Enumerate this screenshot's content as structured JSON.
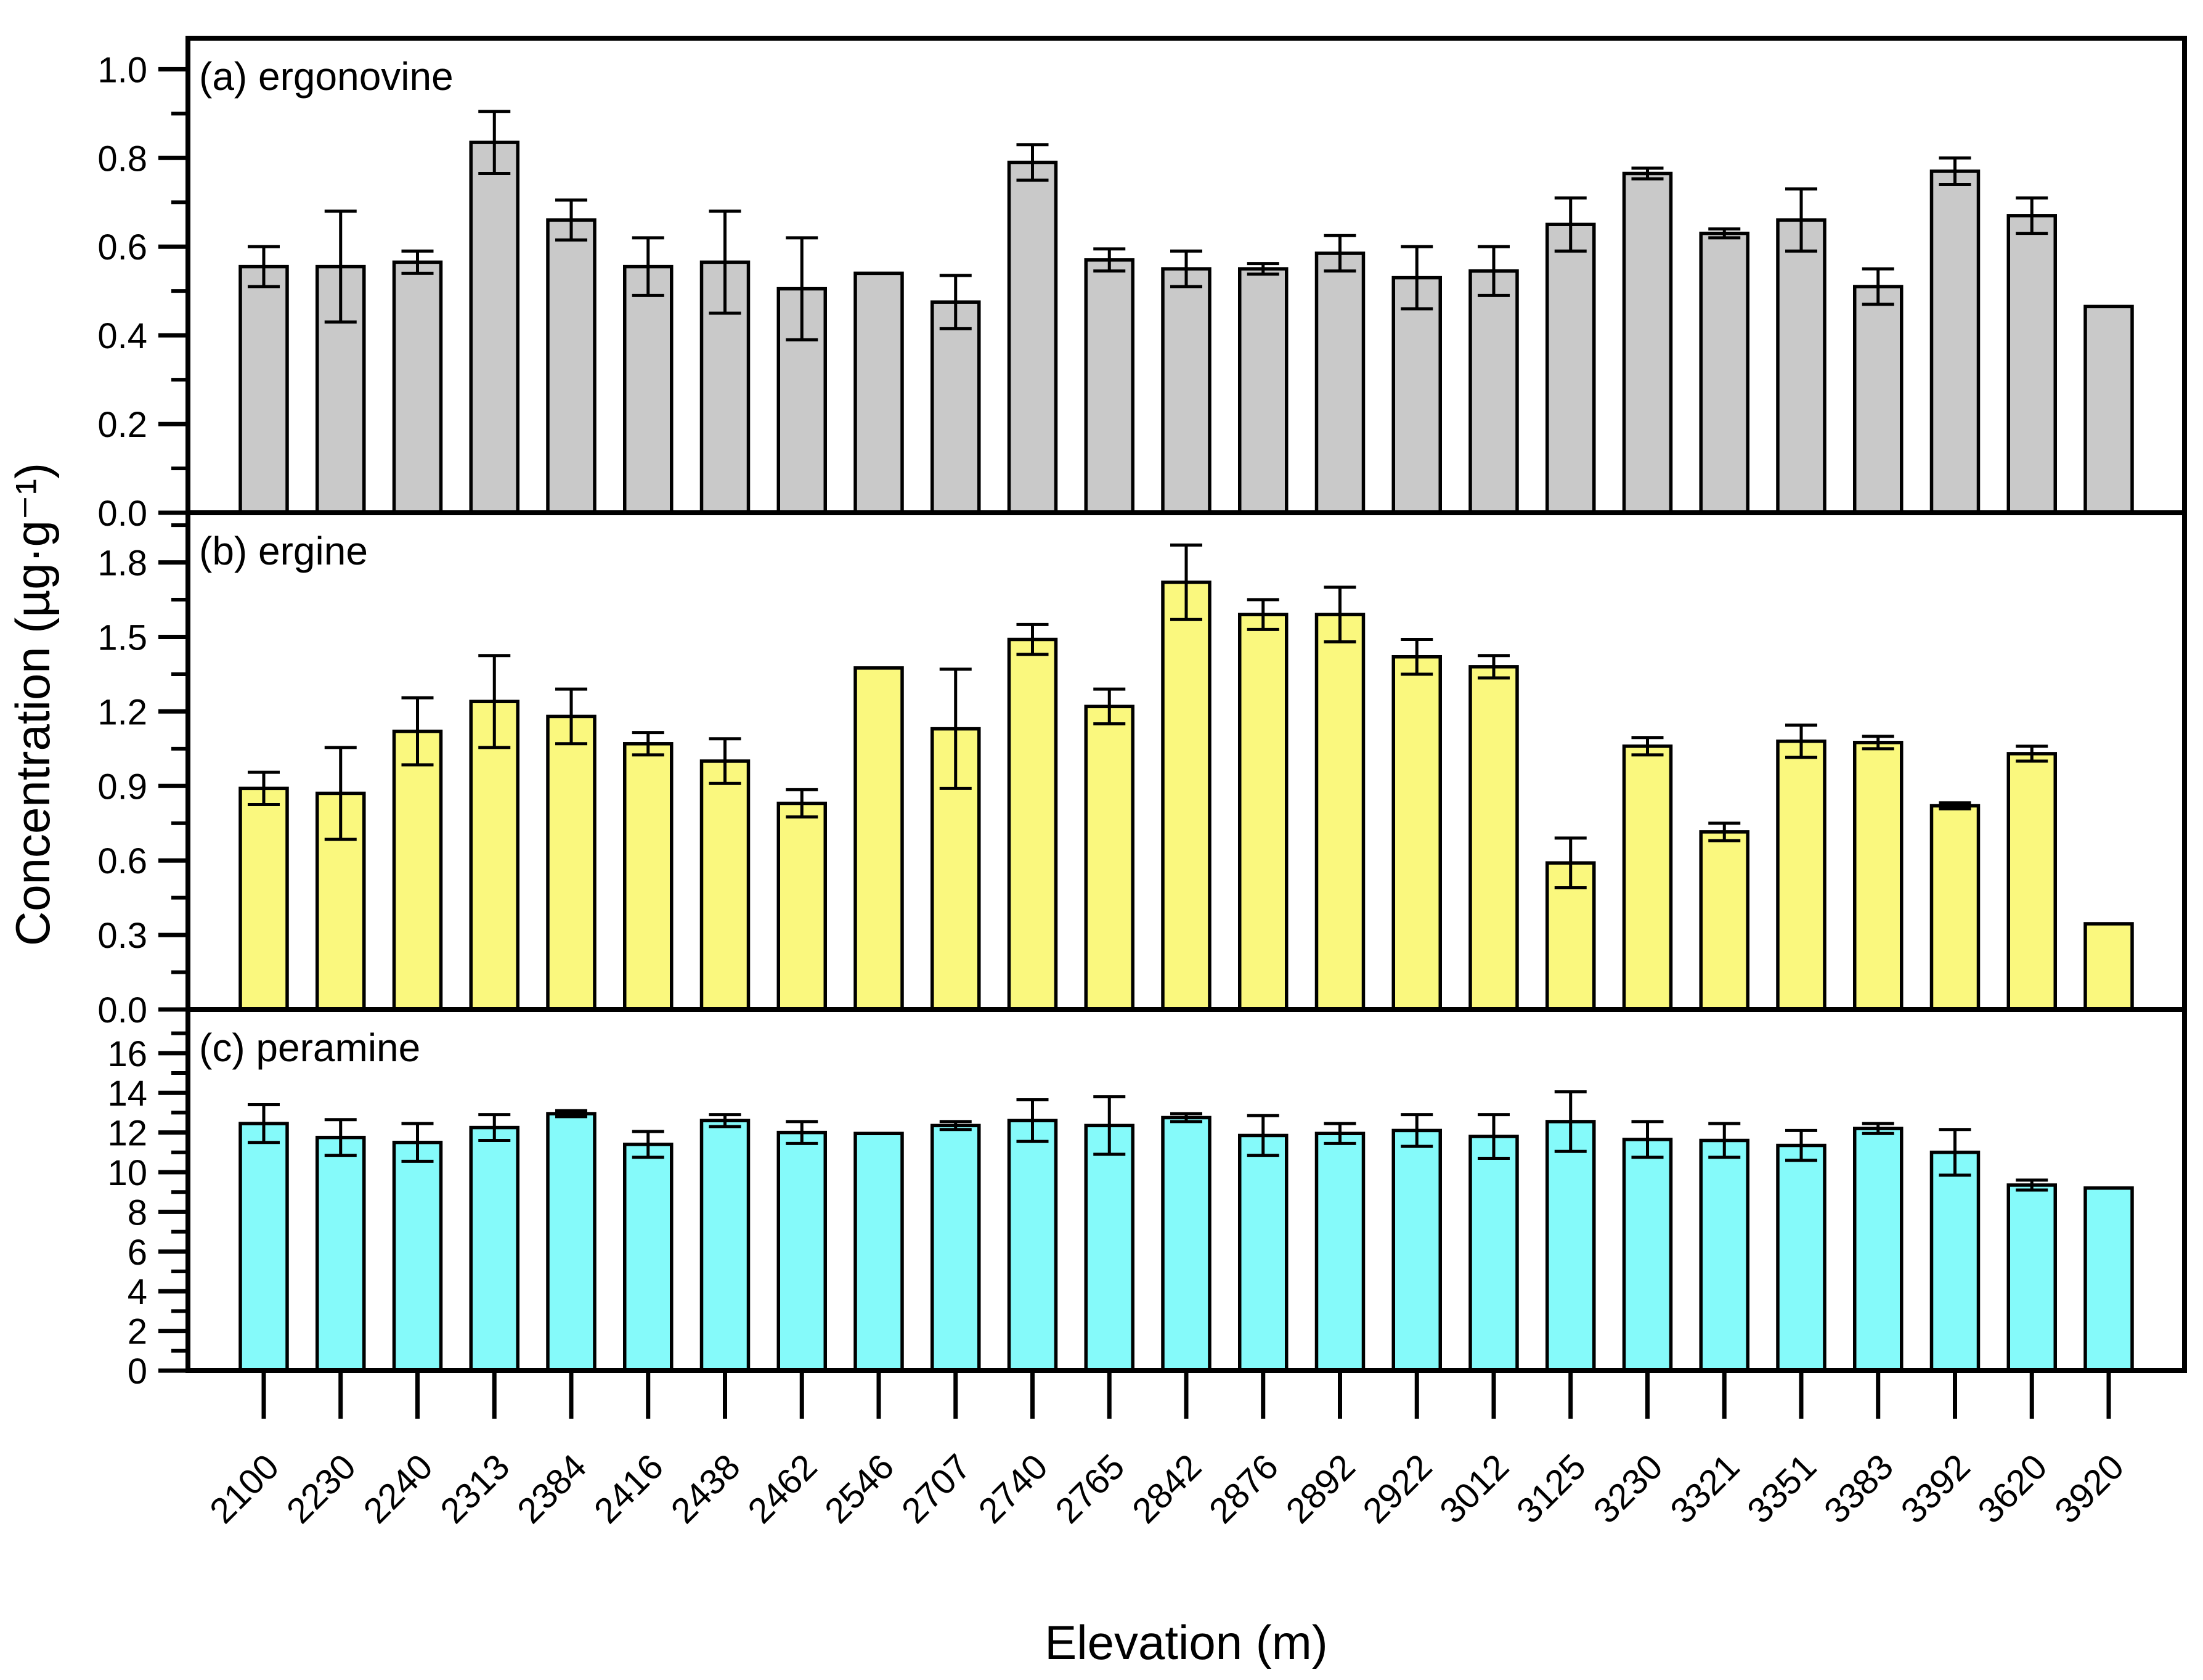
{
  "chart_data": {
    "type": "bar",
    "title": "",
    "xlabel": "Elevation (m)",
    "ylabel": "Concentration (µg·g⁻¹)",
    "grid": false,
    "legend_position": "none",
    "categories": [
      "2100",
      "2230",
      "2240",
      "2313",
      "2384",
      "2416",
      "2438",
      "2462",
      "2546",
      "2707",
      "2740",
      "2765",
      "2842",
      "2876",
      "2892",
      "2922",
      "3012",
      "3125",
      "3230",
      "3321",
      "3351",
      "3383",
      "3392",
      "3620",
      "3920"
    ],
    "error_bar_style": "symmetric, black caps",
    "panels": [
      {
        "id": "a",
        "label": "(a) ergonovine",
        "bar_color": "#c9c9c9",
        "ylim": [
          0,
          1.07
        ],
        "yticks": [
          "0.0",
          "0.2",
          "0.4",
          "0.6",
          "0.8",
          "1.0"
        ],
        "values": [
          0.555,
          0.555,
          0.565,
          0.835,
          0.66,
          0.555,
          0.565,
          0.505,
          0.54,
          0.475,
          0.79,
          0.57,
          0.55,
          0.55,
          0.585,
          0.53,
          0.545,
          0.65,
          0.765,
          0.63,
          0.66,
          0.51,
          0.77,
          0.67,
          0.465
        ],
        "errors": [
          0.045,
          0.125,
          0.025,
          0.07,
          0.045,
          0.065,
          0.115,
          0.115,
          null,
          0.06,
          0.04,
          0.025,
          0.04,
          0.012,
          0.04,
          0.07,
          0.055,
          0.06,
          0.012,
          0.01,
          0.07,
          0.04,
          0.03,
          0.04,
          null
        ]
      },
      {
        "id": "b",
        "label": "(b) ergine",
        "bar_color": "#faf87e",
        "ylim": [
          0,
          2.0
        ],
        "yticks": [
          "0.0",
          "0.3",
          "0.6",
          "0.9",
          "1.2",
          "1.5",
          "1.8"
        ],
        "values": [
          0.89,
          0.87,
          1.12,
          1.24,
          1.18,
          1.07,
          1.0,
          0.83,
          1.375,
          1.13,
          1.49,
          1.22,
          1.72,
          1.59,
          1.59,
          1.42,
          1.38,
          0.59,
          1.06,
          0.715,
          1.08,
          1.075,
          0.82,
          1.03,
          0.345
        ],
        "errors": [
          0.065,
          0.185,
          0.135,
          0.185,
          0.11,
          0.045,
          0.09,
          0.055,
          null,
          0.24,
          0.06,
          0.07,
          0.15,
          0.06,
          0.11,
          0.07,
          0.045,
          0.1,
          0.035,
          0.035,
          0.065,
          0.025,
          0.012,
          0.03,
          null
        ]
      },
      {
        "id": "c",
        "label": "(c) peramine",
        "bar_color": "#85fafa",
        "ylim": [
          0,
          18.2
        ],
        "yticks": [
          "0",
          "2",
          "4",
          "6",
          "8",
          "10",
          "12",
          "14",
          "16"
        ],
        "values": [
          12.45,
          11.75,
          11.5,
          12.25,
          12.95,
          11.4,
          12.6,
          12.0,
          11.95,
          12.35,
          12.6,
          12.35,
          12.75,
          11.85,
          11.95,
          12.1,
          11.8,
          12.55,
          11.65,
          11.6,
          11.35,
          12.2,
          11.0,
          9.35,
          9.2
        ],
        "errors": [
          0.95,
          0.9,
          0.95,
          0.65,
          0.15,
          0.65,
          0.3,
          0.55,
          null,
          0.2,
          1.05,
          1.45,
          0.2,
          1.0,
          0.5,
          0.8,
          1.1,
          1.5,
          0.9,
          0.85,
          0.75,
          0.25,
          1.15,
          0.25,
          null
        ]
      }
    ]
  }
}
